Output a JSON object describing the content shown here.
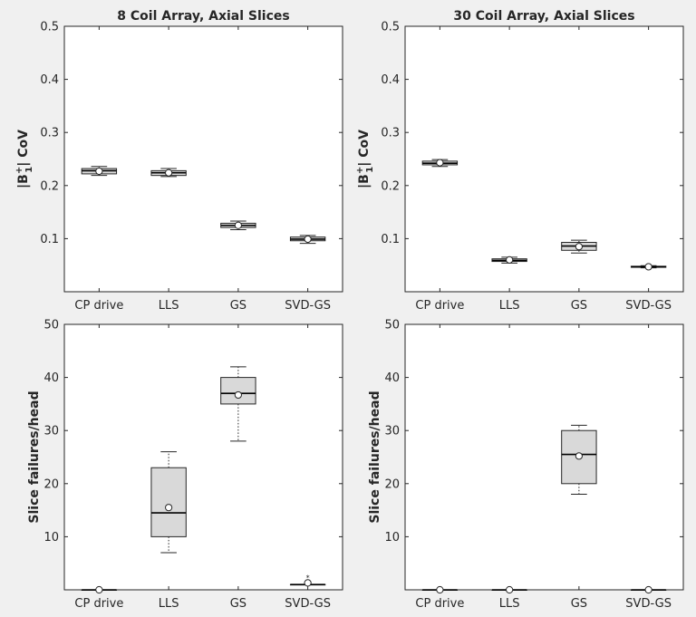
{
  "chart_data": [
    {
      "type": "box",
      "title": "8 Coil Array, Axial Slices",
      "ylabel": "|B1+| CoV",
      "ylim": [
        0,
        0.5
      ],
      "yticks": [
        0.1,
        0.2,
        0.3,
        0.4,
        0.5
      ],
      "ytick_labels": [
        "0.1",
        "0.2",
        "0.3",
        "0.4",
        "0.5"
      ],
      "categories": [
        "CP drive",
        "LLS",
        "GS",
        "SVD-GS"
      ],
      "boxes": [
        {
          "category": "CP drive",
          "whisker_low": 0.219,
          "q1": 0.222,
          "median": 0.228,
          "q3": 0.232,
          "whisker_high": 0.236,
          "mean": 0.227,
          "outliers": []
        },
        {
          "category": "LLS",
          "whisker_low": 0.217,
          "q1": 0.219,
          "median": 0.224,
          "q3": 0.228,
          "whisker_high": 0.232,
          "mean": 0.224,
          "outliers": []
        },
        {
          "category": "GS",
          "whisker_low": 0.117,
          "q1": 0.121,
          "median": 0.125,
          "q3": 0.129,
          "whisker_high": 0.133,
          "mean": 0.125,
          "outliers": []
        },
        {
          "category": "SVD-GS",
          "whisker_low": 0.091,
          "q1": 0.096,
          "median": 0.099,
          "q3": 0.103,
          "whisker_high": 0.106,
          "mean": 0.099,
          "outliers": []
        }
      ],
      "grid": false
    },
    {
      "type": "box",
      "title": "30 Coil Array, Axial Slices",
      "ylabel": "|B1+| CoV",
      "ylim": [
        0,
        0.5
      ],
      "yticks": [
        0.1,
        0.2,
        0.3,
        0.4,
        0.5
      ],
      "ytick_labels": [
        "0.1",
        "0.2",
        "0.3",
        "0.4",
        "0.5"
      ],
      "categories": [
        "CP drive",
        "LLS",
        "GS",
        "SVD-GS"
      ],
      "boxes": [
        {
          "category": "CP drive",
          "whisker_low": 0.236,
          "q1": 0.239,
          "median": 0.242,
          "q3": 0.246,
          "whisker_high": 0.249,
          "mean": 0.243,
          "outliers": []
        },
        {
          "category": "LLS",
          "whisker_low": 0.054,
          "q1": 0.057,
          "median": 0.059,
          "q3": 0.062,
          "whisker_high": 0.065,
          "mean": 0.06,
          "outliers": []
        },
        {
          "category": "GS",
          "whisker_low": 0.073,
          "q1": 0.078,
          "median": 0.086,
          "q3": 0.093,
          "whisker_high": 0.097,
          "mean": 0.085,
          "outliers": []
        },
        {
          "category": "SVD-GS",
          "whisker_low": 0.045,
          "q1": 0.046,
          "median": 0.047,
          "q3": 0.048,
          "whisker_high": 0.049,
          "mean": 0.047,
          "outliers": []
        }
      ],
      "grid": false
    },
    {
      "type": "box",
      "title": "",
      "ylabel": "Slice failures/head",
      "ylim": [
        0,
        50
      ],
      "yticks": [
        10,
        20,
        30,
        40,
        50
      ],
      "ytick_labels": [
        "10",
        "20",
        "30",
        "40",
        "50"
      ],
      "categories": [
        "CP drive",
        "LLS",
        "GS",
        "SVD-GS"
      ],
      "boxes": [
        {
          "category": "CP drive",
          "whisker_low": 0,
          "q1": 0,
          "median": 0,
          "q3": 0,
          "whisker_high": 0,
          "mean": 0,
          "outliers": []
        },
        {
          "category": "LLS",
          "whisker_low": 7,
          "q1": 10,
          "median": 14.5,
          "q3": 23,
          "whisker_high": 26,
          "mean": 15.5,
          "outliers": []
        },
        {
          "category": "GS",
          "whisker_low": 28,
          "q1": 35,
          "median": 37,
          "q3": 40,
          "whisker_high": 42,
          "mean": 36.7,
          "outliers": []
        },
        {
          "category": "SVD-GS",
          "whisker_low": 1,
          "q1": 1,
          "median": 1,
          "q3": 1,
          "whisker_high": 1,
          "mean": 1.3,
          "outliers": [
            2.5
          ]
        }
      ],
      "grid": false
    },
    {
      "type": "box",
      "title": "",
      "ylabel": "Slice failures/head",
      "ylim": [
        0,
        50
      ],
      "yticks": [
        10,
        20,
        30,
        40,
        50
      ],
      "ytick_labels": [
        "10",
        "20",
        "30",
        "40",
        "50"
      ],
      "categories": [
        "CP drive",
        "LLS",
        "GS",
        "SVD-GS"
      ],
      "boxes": [
        {
          "category": "CP drive",
          "whisker_low": 0,
          "q1": 0,
          "median": 0,
          "q3": 0,
          "whisker_high": 0,
          "mean": 0,
          "outliers": []
        },
        {
          "category": "LLS",
          "whisker_low": 0,
          "q1": 0,
          "median": 0,
          "q3": 0,
          "whisker_high": 0,
          "mean": 0,
          "outliers": []
        },
        {
          "category": "GS",
          "whisker_low": 18,
          "q1": 20,
          "median": 25.5,
          "q3": 30,
          "whisker_high": 31,
          "mean": 25.2,
          "outliers": []
        },
        {
          "category": "SVD-GS",
          "whisker_low": 0,
          "q1": 0,
          "median": 0,
          "q3": 0,
          "whisker_high": 0,
          "mean": 0,
          "outliers": []
        }
      ],
      "grid": false
    }
  ],
  "colors": {
    "figure_background": "#f0f0f0",
    "axes_background": "#ffffff",
    "box_fill": "#d9d9d9",
    "ink": "#262626"
  }
}
